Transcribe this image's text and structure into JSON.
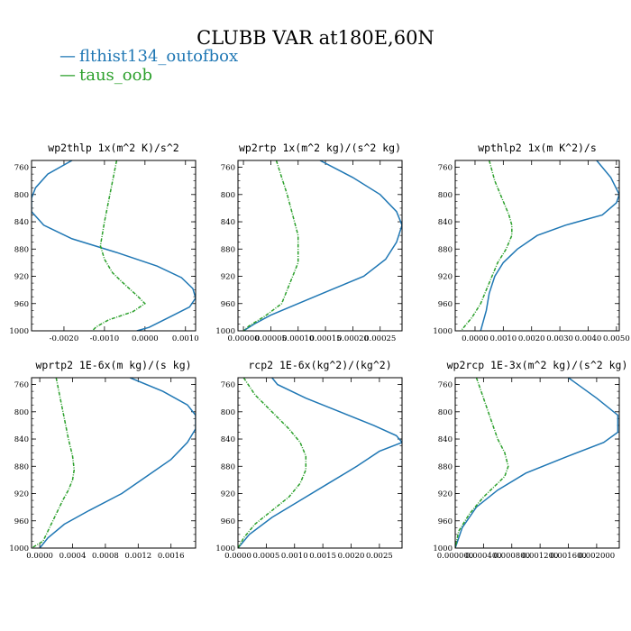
{
  "title": "CLUBB VAR at180E,60N",
  "legend": [
    {
      "label": "flthist134_outofbox",
      "color": "#1f77b4"
    },
    {
      "label": "taus_oob",
      "color": "#2ca02c"
    }
  ],
  "chart_data": [
    {
      "type": "line",
      "title": "wp2thlp  1x(m^2 K)/s^2",
      "ylim": [
        1000,
        750
      ],
      "yticks": [
        760,
        800,
        840,
        880,
        920,
        960,
        1000
      ],
      "xlim": [
        -0.0028,
        0.00125
      ],
      "xticks": [
        -0.002,
        -0.001,
        0.0,
        0.001
      ],
      "xticklabels": [
        "-0.0020",
        "-0.0010",
        "0.0000",
        "0.0010"
      ],
      "series": [
        {
          "name": "flthist134_outofbox",
          "x": [
            -0.0018,
            -0.0024,
            -0.0027,
            -0.0028,
            -0.0028,
            -0.0025,
            -0.0018,
            -0.0007,
            0.0003,
            0.0009,
            0.00118,
            0.00125,
            0.0011,
            0.0006,
            0.0001,
            -0.0002
          ],
          "y": [
            750,
            770,
            790,
            805,
            825,
            845,
            865,
            885,
            905,
            922,
            938,
            952,
            965,
            980,
            995,
            1000
          ]
        },
        {
          "name": "taus_oob",
          "x": [
            -0.0007,
            -0.0008,
            -0.0009,
            -0.001,
            -0.0011,
            -0.001,
            -0.0008,
            -0.0005,
            -0.0002,
            0.0,
            -0.0003,
            -0.0009,
            -0.0012,
            -0.0013
          ],
          "y": [
            750,
            780,
            810,
            840,
            875,
            895,
            915,
            932,
            948,
            960,
            972,
            984,
            994,
            1000
          ]
        }
      ]
    },
    {
      "type": "line",
      "title": "wp2rtp  1x(m^2 kg)/(s^2 kg)",
      "ylim": [
        1000,
        750
      ],
      "yticks": [
        760,
        800,
        840,
        880,
        920,
        960,
        1000
      ],
      "xlim": [
        -1e-05,
        0.00029
      ],
      "xticks": [
        0.0,
        5e-05,
        0.0001,
        0.00015,
        0.0002,
        0.00025
      ],
      "xticklabels": [
        "0.00000",
        "0.00005",
        "0.00010",
        "0.00015",
        "0.00020",
        "0.00025"
      ],
      "series": [
        {
          "name": "flthist134_outofbox",
          "x": [
            0.00014,
            0.0002,
            0.00025,
            0.00028,
            0.00029,
            0.00028,
            0.00026,
            0.00022,
            0.00016,
            0.0001,
            5e-05,
            2e-05,
            0.0
          ],
          "y": [
            750,
            775,
            800,
            825,
            845,
            870,
            895,
            920,
            940,
            960,
            977,
            990,
            1000
          ]
        },
        {
          "name": "taus_oob",
          "x": [
            6e-05,
            7e-05,
            8e-05,
            9e-05,
            0.0001,
            0.0001,
            0.0001,
            9e-05,
            8e-05,
            7e-05,
            4e-05,
            1e-05,
            0.0
          ],
          "y": [
            750,
            775,
            800,
            830,
            860,
            880,
            900,
            920,
            940,
            960,
            978,
            993,
            1000
          ]
        }
      ]
    },
    {
      "type": "line",
      "title": "wpthlp2  1x(m K^2)/s",
      "ylim": [
        1000,
        750
      ],
      "yticks": [
        760,
        800,
        840,
        880,
        920,
        960,
        1000
      ],
      "xlim": [
        -0.0007,
        0.0051
      ],
      "xticks": [
        0.0,
        0.001,
        0.002,
        0.003,
        0.004,
        0.005
      ],
      "xticklabels": [
        "0.0000",
        "0.0010",
        "0.0020",
        "0.0030",
        "0.0040",
        "0.0050"
      ],
      "series": [
        {
          "name": "flthist134_outofbox",
          "x": [
            0.0043,
            0.0048,
            0.0051,
            0.005,
            0.0045,
            0.0032,
            0.0022,
            0.0015,
            0.001,
            0.0007,
            0.0005,
            0.0004,
            0.0002
          ],
          "y": [
            750,
            775,
            800,
            812,
            830,
            845,
            860,
            880,
            900,
            920,
            945,
            970,
            1000
          ]
        },
        {
          "name": "taus_oob",
          "x": [
            0.0005,
            0.0007,
            0.001,
            0.0012,
            0.0013,
            0.0013,
            0.0011,
            0.0008,
            0.0006,
            0.0004,
            0.0002,
            -0.0001,
            -0.0005
          ],
          "y": [
            750,
            780,
            810,
            830,
            845,
            860,
            880,
            900,
            920,
            940,
            960,
            980,
            1000
          ]
        }
      ]
    },
    {
      "type": "line",
      "title": "wprtp2  1E-6x(m kg)/(s kg)",
      "ylim": [
        1000,
        750
      ],
      "yticks": [
        760,
        800,
        840,
        880,
        920,
        960,
        1000
      ],
      "xlim": [
        -0.0001,
        0.0019
      ],
      "xticks": [
        0.0,
        0.0004,
        0.0008,
        0.0012,
        0.0016
      ],
      "xticklabels": [
        "0.0000",
        "0.0004",
        "0.0008",
        "0.0012",
        "0.0016"
      ],
      "series": [
        {
          "name": "flthist134_outofbox",
          "x": [
            0.0011,
            0.0015,
            0.0018,
            0.0019,
            0.0019,
            0.0018,
            0.0016,
            0.0013,
            0.001,
            0.0006,
            0.0003,
            0.0001,
            0.0
          ],
          "y": [
            750,
            770,
            790,
            805,
            825,
            845,
            870,
            895,
            920,
            945,
            965,
            985,
            1000
          ]
        },
        {
          "name": "taus_oob",
          "x": [
            0.0002,
            0.00025,
            0.0003,
            0.00035,
            0.0004,
            0.00042,
            0.0004,
            0.00035,
            0.00028,
            0.0002,
            0.00012,
            4e-05,
            -0.0001
          ],
          "y": [
            750,
            780,
            810,
            840,
            865,
            885,
            900,
            915,
            930,
            950,
            970,
            990,
            1000
          ]
        }
      ]
    },
    {
      "type": "line",
      "title": "rcp2  1E-6x(kg^2)/(kg^2)",
      "ylim": [
        1000,
        750
      ],
      "yticks": [
        760,
        800,
        840,
        880,
        920,
        960,
        1000
      ],
      "xlim": [
        0.0,
        0.0029
      ],
      "xticks": [
        0.0,
        0.0005,
        0.001,
        0.0015,
        0.002,
        0.0025
      ],
      "xticklabels": [
        "0.0000",
        "0.0005",
        "0.0010",
        "0.0015",
        "0.0020",
        "0.0025"
      ],
      "series": [
        {
          "name": "flthist134_outofbox",
          "x": [
            0.0006,
            0.0007,
            0.0012,
            0.0018,
            0.0024,
            0.0028,
            0.0029,
            0.0025,
            0.0021,
            0.0016,
            0.0011,
            0.0006,
            0.0002,
            0.0
          ],
          "y": [
            750,
            760,
            780,
            800,
            820,
            835,
            845,
            858,
            880,
            905,
            930,
            955,
            980,
            1000
          ]
        },
        {
          "name": "taus_oob",
          "x": [
            0.0001,
            0.0003,
            0.0006,
            0.0009,
            0.0011,
            0.0012,
            0.0012,
            0.0011,
            0.0009,
            0.0006,
            0.0003,
            0.0001,
            0.0
          ],
          "y": [
            750,
            775,
            800,
            825,
            845,
            865,
            885,
            905,
            925,
            945,
            965,
            985,
            1000
          ]
        }
      ]
    },
    {
      "type": "line",
      "title": "wp2rcp  1E-3x(m^2 kg)/(s^2 kg)",
      "ylim": [
        1000,
        750
      ],
      "yticks": [
        760,
        800,
        840,
        880,
        920,
        960,
        1000
      ],
      "xlim": [
        0.0,
        0.00232
      ],
      "xticks": [
        0.0,
        0.0004,
        0.0008,
        0.0012,
        0.0016,
        0.002
      ],
      "xticklabels": [
        "0.000000",
        "0.000400",
        "0.000800",
        "0.001200",
        "0.001600",
        "0.002000"
      ],
      "series": [
        {
          "name": "flthist134_outofbox",
          "x": [
            0.0016,
            0.002,
            0.0023,
            0.0023,
            0.0021,
            0.0016,
            0.001,
            0.0006,
            0.0003,
            0.0001,
            0.0
          ],
          "y": [
            750,
            780,
            805,
            830,
            845,
            865,
            890,
            915,
            940,
            970,
            1000
          ]
        },
        {
          "name": "taus_oob",
          "x": [
            0.0003,
            0.0004,
            0.0005,
            0.0006,
            0.0007,
            0.00075,
            0.0007,
            0.00055,
            0.0004,
            0.0002,
            5e-05,
            0.0
          ],
          "y": [
            750,
            780,
            810,
            840,
            860,
            880,
            895,
            910,
            925,
            950,
            975,
            1000
          ]
        }
      ]
    }
  ]
}
